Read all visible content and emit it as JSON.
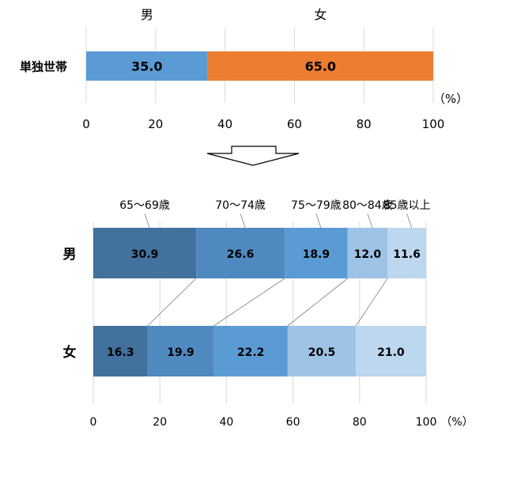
{
  "chart_data": [
    {
      "type": "bar",
      "orientation": "horizontal",
      "stacked": true,
      "categories": [
        "単独世帯"
      ],
      "series": [
        {
          "name": "男",
          "values": [
            35.0
          ],
          "color": "#5b9bd5"
        },
        {
          "name": "女",
          "values": [
            65.0
          ],
          "color": "#ed7d31"
        }
      ],
      "unit": "（%）",
      "xlim": [
        0,
        100
      ],
      "xticks": [
        0,
        20,
        40,
        60,
        80,
        100
      ],
      "grid": true,
      "legend": "top"
    },
    {
      "type": "bar",
      "orientation": "horizontal",
      "stacked": true,
      "categories": [
        "男",
        "女"
      ],
      "series": [
        {
          "name": "65～69歳",
          "values": [
            30.9,
            16.3
          ],
          "color": "#41719c"
        },
        {
          "name": "70～74歳",
          "values": [
            26.6,
            19.9
          ],
          "color": "#4f89c0"
        },
        {
          "name": "75～79歳",
          "values": [
            18.9,
            22.2
          ],
          "color": "#5b9bd5"
        },
        {
          "name": "80～84歳",
          "values": [
            12.0,
            20.5
          ],
          "color": "#9dc3e6"
        },
        {
          "name": "85歳以上",
          "values": [
            11.6,
            21.0
          ],
          "color": "#bdd7ee"
        }
      ],
      "unit": "（%）",
      "xlim": [
        0,
        100
      ],
      "xticks": [
        0,
        20,
        40,
        60,
        80,
        100
      ],
      "grid": true,
      "legend": "top",
      "connector_lines": true
    }
  ],
  "colors": {
    "arrow_stroke": "#000000",
    "grid": "#d9d9d9",
    "connector": "#7f7f7f"
  }
}
